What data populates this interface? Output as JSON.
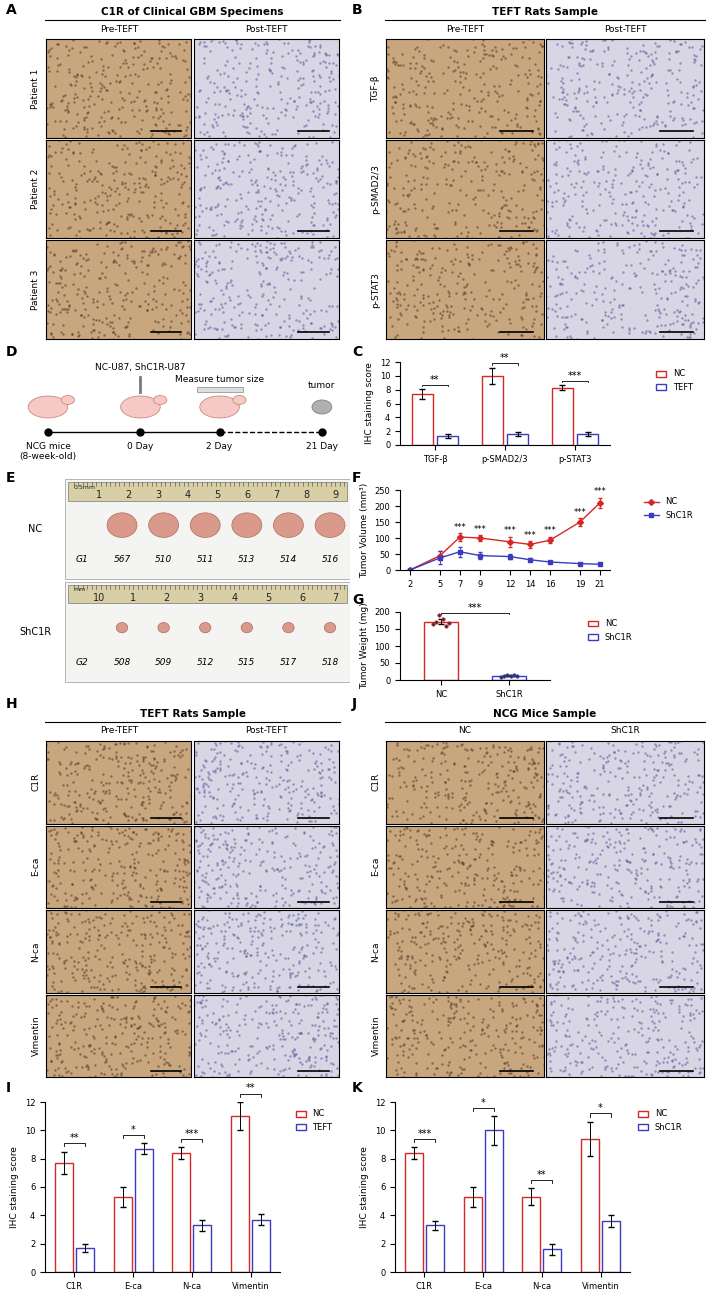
{
  "panel_labels": [
    "A",
    "B",
    "C",
    "D",
    "E",
    "F",
    "G",
    "H",
    "I",
    "J",
    "K"
  ],
  "image_panels": [
    {
      "title": "C1R of Clinical GBM Specimens",
      "columns": [
        "Pre-TEFT",
        "Post-TEFT"
      ],
      "rows": [
        "Patient 1",
        "Patient 2",
        "Patient 3"
      ]
    },
    {
      "title": "TEFT Rats Sample",
      "columns": [
        "Pre-TEFT",
        "Post-TEFT"
      ],
      "rows": [
        "TGF-β",
        "p-SMAD2/3",
        "p-STAT3"
      ]
    },
    {
      "title": "TEFT Rats Sample",
      "columns": [
        "Pre-TEFT",
        "Post-TEFT"
      ],
      "rows": [
        "C1R",
        "E-ca",
        "N-ca",
        "Vimentin"
      ]
    },
    {
      "title": "NCG Mice Sample",
      "columns": [
        "NC",
        "ShC1R"
      ],
      "rows": [
        "C1R",
        "E-ca",
        "N-ca",
        "Vimentin"
      ]
    }
  ],
  "schematic": {
    "nodes": [
      {
        "label": "NCG mice\n(8-week-old)"
      },
      {
        "label": "0 Day",
        "note": "NC-U87, ShC1R-U87"
      },
      {
        "label": "2 Day",
        "note": "Measure tumor size"
      },
      {
        "label": "21 Day",
        "note": "tumor"
      }
    ]
  },
  "photo": {
    "rows": [
      {
        "name": "NC",
        "ruler_unit": "0.5mm",
        "ruler": [
          "1",
          "2",
          "3",
          "4",
          "5",
          "6",
          "7",
          "8",
          "9"
        ],
        "labels": [
          "G1",
          "567",
          "510",
          "511",
          "513",
          "514",
          "516"
        ]
      },
      {
        "name": "ShC1R",
        "ruler_unit": "mm",
        "ruler": [
          "10",
          "1",
          "2",
          "3",
          "4",
          "5",
          "6",
          "7"
        ],
        "labels": [
          "G2",
          "508",
          "509",
          "512",
          "515",
          "517",
          "518"
        ]
      }
    ]
  },
  "chart_data": [
    {
      "type": "bar",
      "categories": [
        "TGF-β",
        "p-SMAD2/3",
        "p-STAT3"
      ],
      "y_label": "IHC staining score",
      "ylim": [
        0,
        12
      ],
      "yticks": [
        0,
        2,
        4,
        6,
        8,
        10,
        12
      ],
      "legend": "upper right",
      "series": [
        {
          "name": "NC",
          "color": "#d62728",
          "values": [
            7.4,
            10.0,
            8.3
          ],
          "errors": [
            0.7,
            1.2,
            0.4
          ]
        },
        {
          "name": "TEFT",
          "color": "#3b3bbf",
          "values": [
            1.3,
            1.6,
            1.6
          ],
          "errors": [
            0.3,
            0.3,
            0.3
          ]
        }
      ],
      "significance": [
        "**",
        "**",
        "***"
      ]
    },
    {
      "type": "line",
      "x": [
        2,
        5,
        7,
        9,
        12,
        14,
        16,
        19,
        21
      ],
      "xlim": [
        1,
        22
      ],
      "xticks": [
        2,
        5,
        7,
        9,
        12,
        14,
        16,
        19,
        21
      ],
      "y_label": "Tumor Volume (mm³)",
      "ylim": [
        0,
        250
      ],
      "yticks": [
        0,
        50,
        100,
        150,
        200,
        250
      ],
      "legend": "upper right",
      "series": [
        {
          "name": "NC",
          "color": "#d62728",
          "marker": "diamond",
          "line_style": "solid",
          "values": [
            0,
            45,
            103,
            100,
            88,
            80,
            93,
            150,
            210
          ],
          "errors": [
            0,
            15,
            12,
            8,
            15,
            10,
            10,
            12,
            15
          ]
        },
        {
          "name": "ShC1R",
          "color": "#3b3bbf",
          "marker": "square",
          "line_style": "solid",
          "values": [
            0,
            38,
            57,
            45,
            42,
            32,
            25,
            20,
            18
          ],
          "errors": [
            0,
            20,
            15,
            10,
            8,
            5,
            3,
            2,
            2
          ]
        }
      ],
      "significance": [
        null,
        null,
        "***",
        "***",
        "***",
        "***",
        "***",
        "***",
        "***"
      ]
    },
    {
      "type": "bar",
      "categories": [
        "NC",
        "ShC1R"
      ],
      "y_label": "Tumor Weight (mg)",
      "ylim": [
        0,
        200
      ],
      "yticks": [
        0,
        50,
        100,
        150,
        200
      ],
      "legend": "upper right",
      "values": [
        172,
        13
      ],
      "errors": [
        8,
        2
      ],
      "colors": [
        "#d62728",
        "#3b3bbf"
      ],
      "points": [
        [
          165,
          172,
          190,
          178,
          160,
          168
        ],
        [
          10,
          12,
          14,
          13,
          15,
          12
        ]
      ],
      "significance": [
        "***"
      ]
    },
    {
      "type": "bar",
      "categories": [
        "C1R",
        "E-ca",
        "N-ca",
        "Vimentin"
      ],
      "y_label": "IHC staining score",
      "ylim": [
        0,
        12
      ],
      "yticks": [
        0,
        2,
        4,
        6,
        8,
        10,
        12
      ],
      "legend": "upper right",
      "series": [
        {
          "name": "NC",
          "color": "#d62728",
          "values": [
            7.7,
            5.3,
            8.4,
            11.0
          ],
          "errors": [
            0.8,
            0.7,
            0.4,
            1.0
          ]
        },
        {
          "name": "TEFT",
          "color": "#3b3bbf",
          "values": [
            1.7,
            8.7,
            3.3,
            3.7
          ],
          "errors": [
            0.3,
            0.4,
            0.4,
            0.4
          ]
        }
      ],
      "significance": [
        "**",
        "*",
        "***",
        "**"
      ]
    },
    {
      "type": "bar",
      "categories": [
        "C1R",
        "E-ca",
        "N-ca",
        "Vimentin"
      ],
      "y_label": "IHC staining score",
      "ylim": [
        0,
        12
      ],
      "yticks": [
        0,
        2,
        4,
        6,
        8,
        10,
        12
      ],
      "legend": "upper right",
      "series": [
        {
          "name": "NC",
          "color": "#d62728",
          "values": [
            8.4,
            5.3,
            5.3,
            9.4
          ],
          "errors": [
            0.4,
            0.7,
            0.6,
            1.2
          ]
        },
        {
          "name": "ShC1R",
          "color": "#3b3bbf",
          "values": [
            3.3,
            10.0,
            1.6,
            3.6
          ],
          "errors": [
            0.3,
            1.0,
            0.4,
            0.4
          ]
        }
      ],
      "significance": [
        "***",
        "*",
        "**",
        "*"
      ]
    }
  ]
}
